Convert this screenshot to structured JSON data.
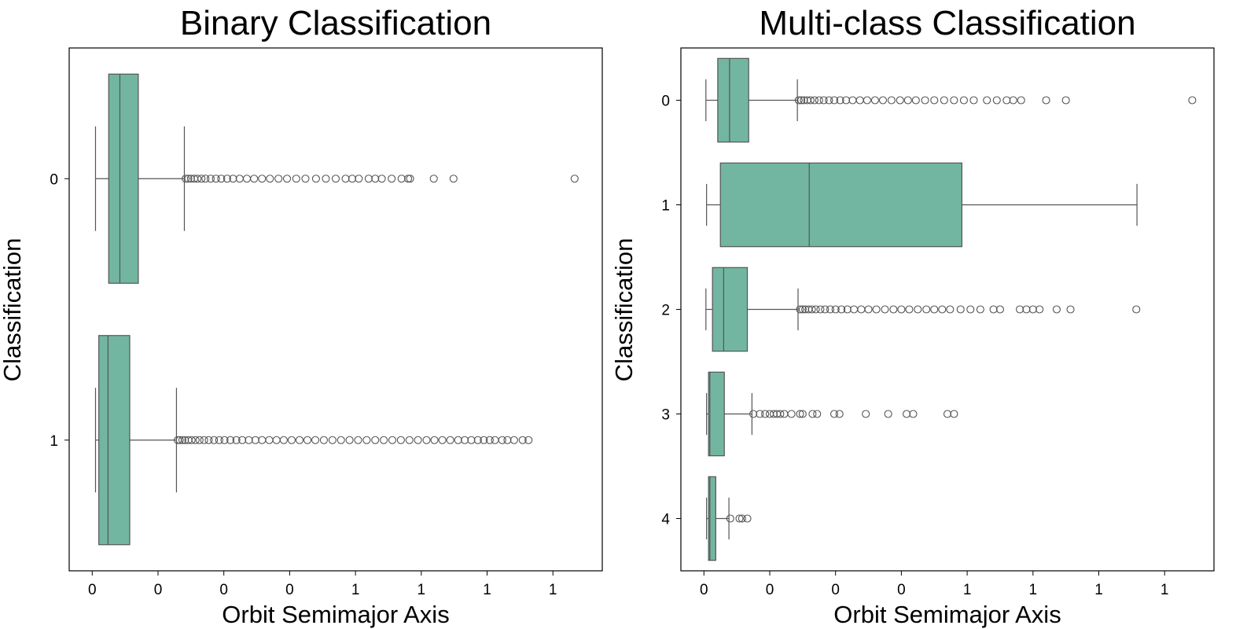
{
  "chart_data": [
    {
      "type": "box",
      "orientation": "horizontal",
      "title": "Binary Classification",
      "xlabel": "Orbit Semimajor Axis",
      "ylabel": "Classification",
      "x_tick_labels": [
        "0",
        "0",
        "0",
        "0",
        "1",
        "1",
        "1",
        "1"
      ],
      "xlim": [
        -0.035,
        0.775
      ],
      "grid": false,
      "legend": "none",
      "box_color": "#72b6a1",
      "line_color": "#555555",
      "categories": [
        "0",
        "1"
      ],
      "boxes": [
        {
          "category": "0",
          "whisker_low": 0.005,
          "q1": 0.025,
          "median": 0.042,
          "q3": 0.07,
          "whisker_high": 0.14,
          "outliers": [
            0.142,
            0.146,
            0.15,
            0.155,
            0.16,
            0.166,
            0.172,
            0.18,
            0.188,
            0.196,
            0.205,
            0.214,
            0.224,
            0.235,
            0.246,
            0.258,
            0.27,
            0.283,
            0.296,
            0.31,
            0.324,
            0.34,
            0.355,
            0.37,
            0.385,
            0.395,
            0.405,
            0.42,
            0.43,
            0.44,
            0.455,
            0.47,
            0.48,
            0.483,
            0.519,
            0.549,
            0.733
          ]
        },
        {
          "category": "1",
          "whisker_low": 0.005,
          "q1": 0.01,
          "median": 0.024,
          "q3": 0.057,
          "whisker_high": 0.128,
          "outliers": [
            0.13,
            0.133,
            0.137,
            0.141,
            0.146,
            0.151,
            0.157,
            0.163,
            0.17,
            0.177,
            0.185,
            0.193,
            0.201,
            0.21,
            0.219,
            0.228,
            0.238,
            0.248,
            0.258,
            0.269,
            0.28,
            0.291,
            0.303,
            0.315,
            0.327,
            0.339,
            0.352,
            0.365,
            0.378,
            0.391,
            0.404,
            0.417,
            0.43,
            0.443,
            0.456,
            0.469,
            0.482,
            0.495,
            0.508,
            0.52,
            0.532,
            0.544,
            0.556,
            0.566,
            0.576,
            0.586,
            0.595,
            0.604,
            0.612,
            0.623,
            0.631,
            0.641,
            0.654,
            0.663
          ]
        }
      ]
    },
    {
      "type": "box",
      "orientation": "horizontal",
      "title": "Multi-class Classification",
      "xlabel": "Orbit Semimajor Axis",
      "ylabel": "Classification",
      "x_tick_labels": [
        "0",
        "0",
        "0",
        "0",
        "1",
        "1",
        "1",
        "1"
      ],
      "xlim": [
        -0.035,
        0.775
      ],
      "grid": false,
      "legend": "none",
      "box_color": "#72b6a1",
      "line_color": "#555555",
      "categories": [
        "0",
        "1",
        "2",
        "3",
        "4"
      ],
      "boxes": [
        {
          "category": "0",
          "whisker_low": 0.003,
          "q1": 0.021,
          "median": 0.039,
          "q3": 0.068,
          "whisker_high": 0.142,
          "outliers": [
            0.144,
            0.148,
            0.152,
            0.157,
            0.162,
            0.168,
            0.175,
            0.182,
            0.19,
            0.198,
            0.207,
            0.216,
            0.226,
            0.237,
            0.248,
            0.26,
            0.272,
            0.285,
            0.298,
            0.31,
            0.322,
            0.336,
            0.35,
            0.365,
            0.38,
            0.395,
            0.41,
            0.43,
            0.445,
            0.46,
            0.47,
            0.482,
            0.52,
            0.55,
            0.742
          ]
        },
        {
          "category": "1",
          "whisker_low": 0.004,
          "q1": 0.025,
          "median": 0.16,
          "q3": 0.392,
          "whisker_high": 0.658,
          "outliers": []
        },
        {
          "category": "2",
          "whisker_low": 0.003,
          "q1": 0.013,
          "median": 0.03,
          "q3": 0.066,
          "whisker_high": 0.143,
          "outliers": [
            0.146,
            0.15,
            0.154,
            0.159,
            0.164,
            0.17,
            0.177,
            0.184,
            0.192,
            0.2,
            0.209,
            0.218,
            0.228,
            0.239,
            0.25,
            0.262,
            0.275,
            0.288,
            0.3,
            0.312,
            0.325,
            0.338,
            0.35,
            0.362,
            0.374,
            0.39,
            0.405,
            0.42,
            0.44,
            0.45,
            0.48,
            0.49,
            0.5,
            0.51,
            0.536,
            0.557,
            0.657
          ]
        },
        {
          "category": "3",
          "whisker_low": 0.004,
          "q1": 0.007,
          "median": 0.009,
          "q3": 0.031,
          "whisker_high": 0.073,
          "outliers": [
            0.075,
            0.085,
            0.093,
            0.1,
            0.106,
            0.111,
            0.116,
            0.122,
            0.133,
            0.146,
            0.15,
            0.165,
            0.172,
            0.198,
            0.206,
            0.246,
            0.28,
            0.308,
            0.318,
            0.37,
            0.38
          ]
        },
        {
          "category": "4",
          "whisker_low": 0.004,
          "q1": 0.007,
          "median": 0.009,
          "q3": 0.018,
          "whisker_high": 0.038,
          "outliers": [
            0.04,
            0.054,
            0.058,
            0.066
          ]
        }
      ]
    }
  ]
}
